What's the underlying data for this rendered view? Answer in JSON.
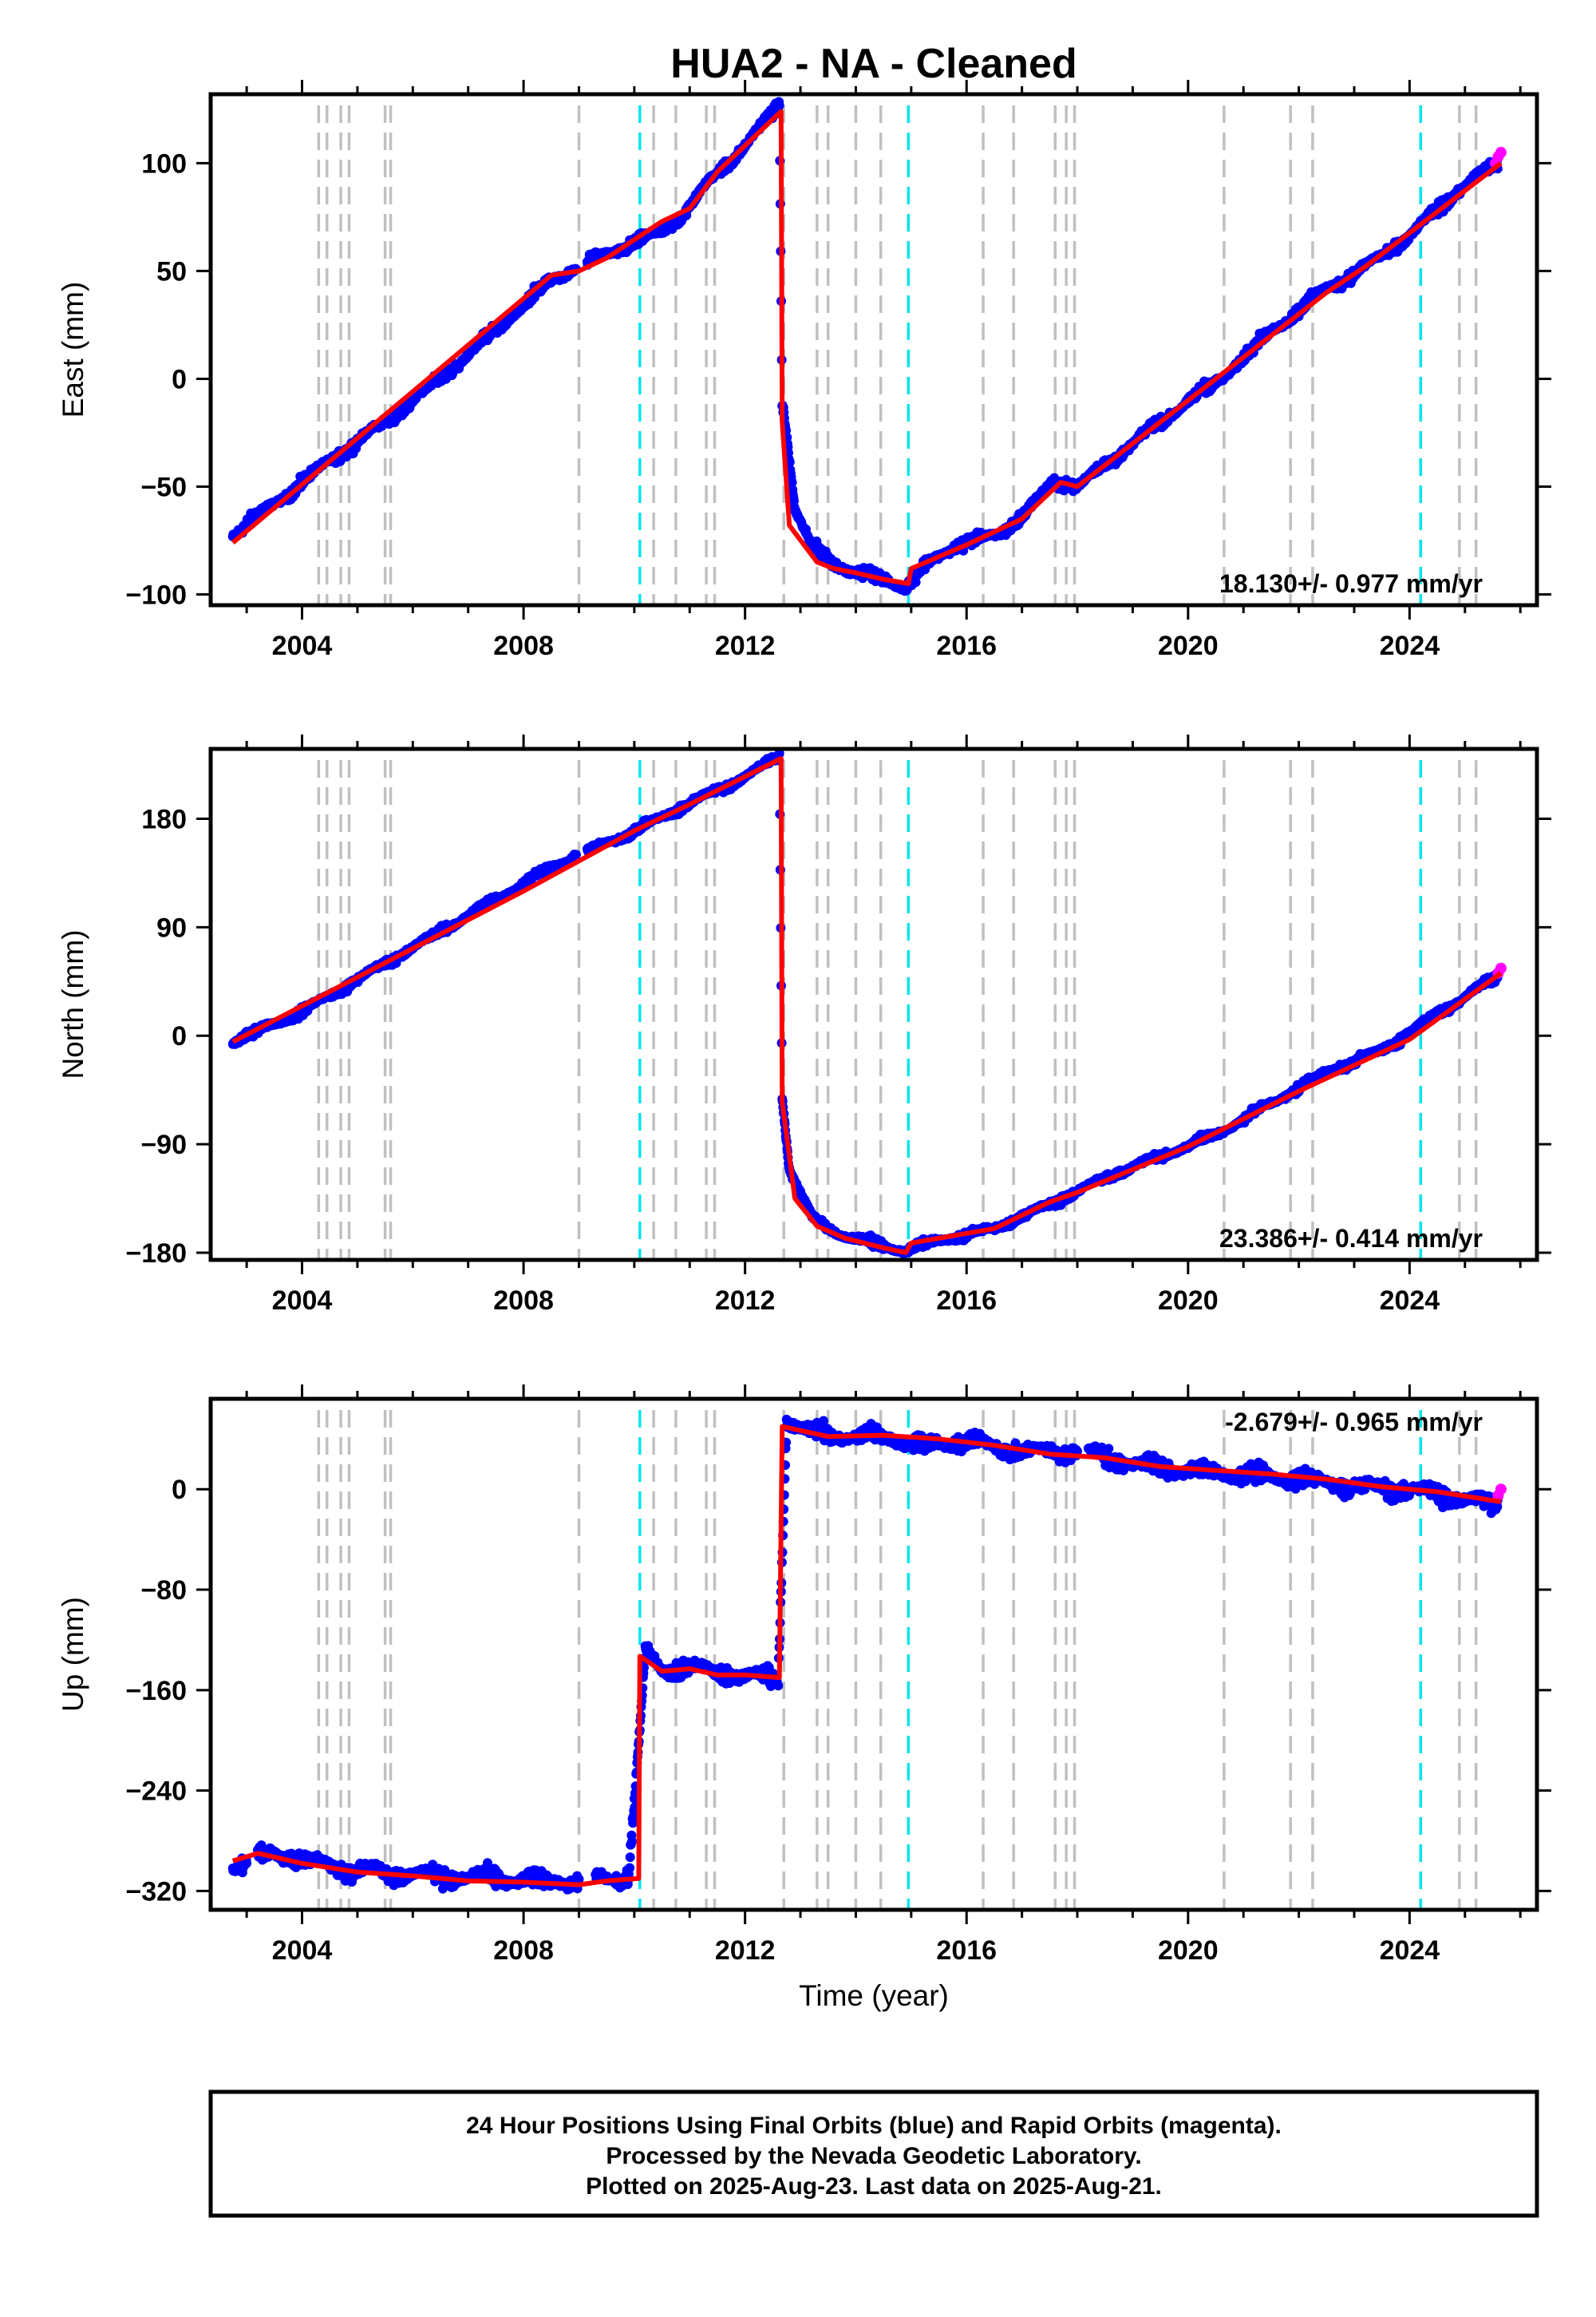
{
  "title": "HUA2  - NA - Cleaned",
  "xlabel": "Time (year)",
  "footer": {
    "line1": "24 Hour Positions Using Final Orbits (blue) and Rapid Orbits (magenta).",
    "line2": "Processed by the Nevada Geodetic Laboratory.",
    "line3": "Plotted on 2025-Aug-23. Last data on 2025-Aug-21."
  },
  "colors": {
    "final_orbits": "#0000ff",
    "rapid_orbits": "#ff00ff",
    "model": "#ff0000",
    "gray_events": "#c0c0c0",
    "cyan_events": "#00e5ee"
  },
  "chart_data": [
    {
      "type": "scatter",
      "panel": "east",
      "ylabel": "East (mm)",
      "rate_text": "18.130+/- 0.977 mm/yr",
      "xlim": [
        2002.35,
        2026.3
      ],
      "ylim": [
        -105,
        132
      ],
      "xticks": [
        2004,
        2008,
        2012,
        2016,
        2020,
        2024
      ],
      "yticks": [
        100,
        50,
        0,
        -50,
        -100
      ],
      "ytick_labels": [
        "100",
        "50",
        "0",
        "−50",
        "−100"
      ],
      "gray_events": [
        2004.3,
        2004.45,
        2004.7,
        2004.85,
        2005.5,
        2005.6,
        2009.0,
        2010.35,
        2010.75,
        2011.3,
        2011.45,
        2012.7,
        2013.3,
        2013.5,
        2014.0,
        2014.45,
        2016.3,
        2016.85,
        2017.6,
        2017.8,
        2017.95,
        2020.65,
        2021.85,
        2022.25,
        2024.9,
        2025.2
      ],
      "cyan_events": [
        2010.1,
        2014.95,
        2024.2
      ],
      "series": [
        {
          "name": "Final Orbits",
          "x": [
            2002.75,
            2003.5,
            2004.5,
            2005.5,
            2006.5,
            2007.5,
            2008.5,
            2009.5,
            2010.5,
            2011.0,
            2011.5,
            2012.0,
            2012.62,
            2012.67,
            2012.75,
            2012.9,
            2013.2,
            2013.6,
            2014.0,
            2014.5,
            2014.9,
            2015.3,
            2015.8,
            2016.5,
            2017.0,
            2017.6,
            2018.0,
            2019.0,
            2019.9,
            2020.5,
            2021.5,
            2022.5,
            2023.2,
            2024.0,
            2024.8,
            2025.6
          ],
          "y": [
            -72,
            -58,
            -38,
            -20,
            0,
            23,
            46,
            58,
            68,
            80,
            96,
            108,
            127,
            -10,
            -25,
            -60,
            -78,
            -85,
            -90,
            -93,
            -96,
            -86,
            -77,
            -73,
            -64,
            -47,
            -50,
            -30,
            -12,
            -2,
            22,
            42,
            52,
            66,
            86,
            100
          ]
        },
        {
          "name": "Rapid Orbits",
          "x": [
            2025.55,
            2025.6,
            2025.65
          ],
          "y": [
            100,
            103,
            105
          ]
        }
      ],
      "model": {
        "x": [
          2002.75,
          2008.5,
          2009.0,
          2009.5,
          2010.5,
          2011.0,
          2011.5,
          2012.65,
          2012.67,
          2012.8,
          2013.3,
          2013.6,
          2014.0,
          2014.5,
          2014.95,
          2015.0,
          2016.0,
          2017.0,
          2017.7,
          2018.0,
          2020.0,
          2022.5,
          2023.2,
          2025.65
        ],
        "y": [
          -76,
          48,
          50,
          56,
          73,
          79,
          96,
          124,
          -20,
          -68,
          -85,
          -88,
          -90,
          -93,
          -95,
          -88,
          -77,
          -65,
          -48,
          -50,
          -10,
          40,
          52,
          100
        ]
      }
    },
    {
      "type": "scatter",
      "panel": "north",
      "ylabel": "North (mm)",
      "rate_text": "23.386+/- 0.414 mm/yr",
      "xlim": [
        2002.35,
        2026.3
      ],
      "ylim": [
        -186,
        238
      ],
      "xticks": [
        2004,
        2008,
        2012,
        2016,
        2020,
        2024
      ],
      "yticks": [
        180,
        90,
        0,
        -90,
        -180
      ],
      "ytick_labels": [
        "180",
        "90",
        "0",
        "−90",
        "−180"
      ],
      "gray_events": [
        2004.3,
        2004.45,
        2004.7,
        2004.85,
        2005.5,
        2005.6,
        2009.0,
        2010.35,
        2010.75,
        2011.3,
        2011.45,
        2012.7,
        2013.3,
        2013.5,
        2014.0,
        2014.45,
        2016.3,
        2016.85,
        2017.6,
        2017.8,
        2017.95,
        2020.65,
        2021.85,
        2022.25,
        2024.9,
        2025.2
      ],
      "cyan_events": [
        2010.1,
        2014.95,
        2024.2
      ],
      "series": [
        {
          "name": "Final Orbits",
          "x": [
            2002.75,
            2004.0,
            2005.5,
            2007.0,
            2008.5,
            2010.0,
            2011.0,
            2012.0,
            2012.62,
            2012.67,
            2012.8,
            2013.2,
            2013.6,
            2014.0,
            2014.5,
            2014.9,
            2015.5,
            2016.5,
            2017.5,
            2018.5,
            2019.5,
            2020.5,
            2021.5,
            2022.5,
            2023.5,
            2024.5,
            2025.6
          ],
          "y": [
            -5,
            20,
            60,
            100,
            140,
            170,
            193,
            215,
            232,
            -50,
            -110,
            -150,
            -163,
            -168,
            -175,
            -178,
            -170,
            -160,
            -140,
            -118,
            -100,
            -82,
            -56,
            -30,
            -12,
            18,
            50
          ]
        },
        {
          "name": "Rapid Orbits",
          "x": [
            2025.6,
            2025.65
          ],
          "y": [
            52,
            56
          ]
        }
      ],
      "model": {
        "x": [
          2002.75,
          2008.0,
          2010.0,
          2011.0,
          2012.65,
          2012.67,
          2012.9,
          2013.3,
          2013.8,
          2014.5,
          2014.9,
          2015.0,
          2016.5,
          2017.5,
          2018.0,
          2020.0,
          2022.0,
          2024.0,
          2025.65
        ],
        "y": [
          -5,
          120,
          170,
          192,
          230,
          -55,
          -135,
          -158,
          -168,
          -176,
          -180,
          -172,
          -160,
          -138,
          -130,
          -92,
          -46,
          -3,
          52
        ]
      }
    },
    {
      "type": "scatter",
      "panel": "up",
      "ylabel": "Up (mm)",
      "rate_text": "-2.679+/- 0.965 mm/yr",
      "xlim": [
        2002.35,
        2026.3
      ],
      "ylim": [
        -335,
        72
      ],
      "xticks": [
        2004,
        2008,
        2012,
        2016,
        2020,
        2024
      ],
      "yticks": [
        0,
        -80,
        -160,
        -240,
        -320
      ],
      "ytick_labels": [
        "0",
        "−80",
        "−160",
        "−240",
        "−320"
      ],
      "gray_events": [
        2004.3,
        2004.45,
        2004.7,
        2004.85,
        2005.5,
        2005.6,
        2009.0,
        2010.35,
        2010.75,
        2011.3,
        2011.45,
        2012.7,
        2013.3,
        2013.5,
        2014.0,
        2014.45,
        2016.3,
        2016.85,
        2017.6,
        2017.8,
        2017.95,
        2020.65,
        2021.85,
        2022.25,
        2024.9,
        2025.2
      ],
      "cyan_events": [
        2010.1,
        2014.95,
        2024.2
      ],
      "series": [
        {
          "name": "Final Orbits",
          "x": [
            2002.75,
            2003.5,
            2004.5,
            2005.5,
            2006.5,
            2007.5,
            2008.5,
            2009.2,
            2009.9,
            2010.2,
            2010.5,
            2011.0,
            2011.5,
            2012.0,
            2012.6,
            2012.75,
            2013.2,
            2014.0,
            2014.6,
            2015.2,
            2016.0,
            2017.0,
            2018.2,
            2019.0,
            2020.0,
            2021.0,
            2022.0,
            2023.0,
            2024.0,
            2025.0,
            2025.6
          ],
          "y": [
            -300,
            -290,
            -300,
            -305,
            -308,
            -310,
            -312,
            -312,
            -308,
            -130,
            -145,
            -140,
            -148,
            -148,
            -150,
            55,
            45,
            42,
            42,
            35,
            38,
            30,
            30,
            20,
            15,
            12,
            8,
            2,
            0,
            -8,
            -12
          ]
        },
        {
          "name": "Rapid Orbits",
          "x": [
            2025.6,
            2025.65
          ],
          "y": [
            -5,
            0
          ]
        }
      ],
      "model": {
        "x": [
          2002.75,
          2003.2,
          2004.0,
          2005.0,
          2006.0,
          2007.0,
          2008.0,
          2009.0,
          2009.5,
          2010.08,
          2010.1,
          2010.5,
          2011.0,
          2011.5,
          2012.0,
          2012.62,
          2012.67,
          2013.5,
          2014.5,
          2015.5,
          2016.5,
          2017.5,
          2018.5,
          2019.5,
          2020.5,
          2021.5,
          2022.5,
          2023.5,
          2024.5,
          2025.65
        ],
        "y": [
          -296,
          -290,
          -298,
          -305,
          -308,
          -312,
          -313,
          -315,
          -312,
          -310,
          -133,
          -145,
          -143,
          -148,
          -148,
          -150,
          50,
          42,
          43,
          40,
          35,
          28,
          25,
          18,
          15,
          12,
          8,
          2,
          -2,
          -10
        ]
      }
    }
  ]
}
